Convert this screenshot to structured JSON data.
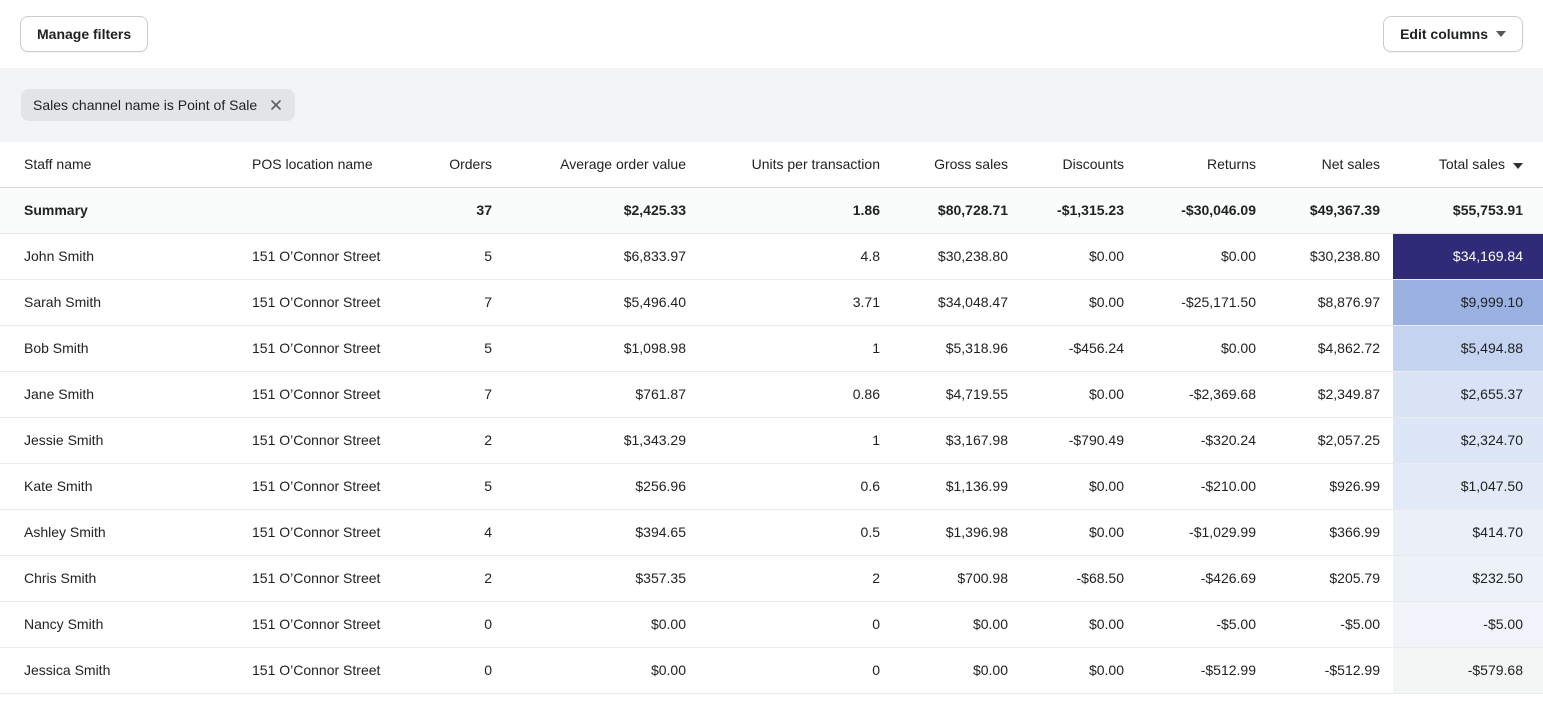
{
  "toolbar": {
    "manage_filters_label": "Manage filters",
    "edit_columns_label": "Edit columns"
  },
  "filter_bar": {
    "chip_label": "Sales channel name is Point of Sale"
  },
  "table": {
    "columns": [
      {
        "label": "Staff name",
        "align": "left"
      },
      {
        "label": "POS location name",
        "align": "left"
      },
      {
        "label": "Orders",
        "align": "right"
      },
      {
        "label": "Average order value",
        "align": "right"
      },
      {
        "label": "Units per transaction",
        "align": "right"
      },
      {
        "label": "Gross sales",
        "align": "right"
      },
      {
        "label": "Discounts",
        "align": "right"
      },
      {
        "label": "Returns",
        "align": "right"
      },
      {
        "label": "Net sales",
        "align": "right"
      },
      {
        "label": "Total sales",
        "align": "right",
        "sort": "desc"
      }
    ],
    "summary": {
      "staff": "Summary",
      "location": "",
      "orders": "37",
      "avg_order_value": "$2,425.33",
      "units_per_transaction": "1.86",
      "gross_sales": "$80,728.71",
      "discounts": "-$1,315.23",
      "returns": "-$30,046.09",
      "net_sales": "$49,367.39",
      "total_sales": "$55,753.91"
    },
    "rows": [
      {
        "staff": "John Smith",
        "location": "151 O’Connor Street",
        "orders": "5",
        "avg_order_value": "$6,833.97",
        "units_per_transaction": "4.8",
        "gross_sales": "$30,238.80",
        "discounts": "$0.00",
        "returns": "$0.00",
        "net_sales": "$30,238.80",
        "total_sales": "$34,169.84",
        "total_bg": "#2f2b77",
        "total_text": "#ffffff"
      },
      {
        "staff": "Sarah Smith",
        "location": "151 O’Connor Street",
        "orders": "7",
        "avg_order_value": "$5,496.40",
        "units_per_transaction": "3.71",
        "gross_sales": "$34,048.47",
        "discounts": "$0.00",
        "returns": "-$25,171.50",
        "net_sales": "$8,876.97",
        "total_sales": "$9,999.10",
        "total_bg": "#9ab1e2",
        "total_text": "#202223"
      },
      {
        "staff": "Bob Smith",
        "location": "151 O’Connor Street",
        "orders": "5",
        "avg_order_value": "$1,098.98",
        "units_per_transaction": "1",
        "gross_sales": "$5,318.96",
        "discounts": "-$456.24",
        "returns": "$0.00",
        "net_sales": "$4,862.72",
        "total_sales": "$5,494.88",
        "total_bg": "#c4d3ef",
        "total_text": "#202223"
      },
      {
        "staff": "Jane Smith",
        "location": "151 O’Connor Street",
        "orders": "7",
        "avg_order_value": "$761.87",
        "units_per_transaction": "0.86",
        "gross_sales": "$4,719.55",
        "discounts": "$0.00",
        "returns": "-$2,369.68",
        "net_sales": "$2,349.87",
        "total_sales": "$2,655.37",
        "total_bg": "#d9e3f5",
        "total_text": "#202223"
      },
      {
        "staff": "Jessie Smith",
        "location": "151 O’Connor Street",
        "orders": "2",
        "avg_order_value": "$1,343.29",
        "units_per_transaction": "1",
        "gross_sales": "$3,167.98",
        "discounts": "-$790.49",
        "returns": "-$320.24",
        "net_sales": "$2,057.25",
        "total_sales": "$2,324.70",
        "total_bg": "#dde6f6",
        "total_text": "#202223"
      },
      {
        "staff": "Kate Smith",
        "location": "151 O’Connor Street",
        "orders": "5",
        "avg_order_value": "$256.96",
        "units_per_transaction": "0.6",
        "gross_sales": "$1,136.99",
        "discounts": "$0.00",
        "returns": "-$210.00",
        "net_sales": "$926.99",
        "total_sales": "$1,047.50",
        "total_bg": "#e3eaf7",
        "total_text": "#202223"
      },
      {
        "staff": "Ashley Smith",
        "location": "151 O’Connor Street",
        "orders": "4",
        "avg_order_value": "$394.65",
        "units_per_transaction": "0.5",
        "gross_sales": "$1,396.98",
        "discounts": "$0.00",
        "returns": "-$1,029.99",
        "net_sales": "$366.99",
        "total_sales": "$414.70",
        "total_bg": "#eaeff8",
        "total_text": "#202223"
      },
      {
        "staff": "Chris Smith",
        "location": "151 O’Connor Street",
        "orders": "2",
        "avg_order_value": "$357.35",
        "units_per_transaction": "2",
        "gross_sales": "$700.98",
        "discounts": "-$68.50",
        "returns": "-$426.69",
        "net_sales": "$205.79",
        "total_sales": "$232.50",
        "total_bg": "#edf2f9",
        "total_text": "#202223"
      },
      {
        "staff": "Nancy Smith",
        "location": "151 O’Connor Street",
        "orders": "0",
        "avg_order_value": "$0.00",
        "units_per_transaction": "0",
        "gross_sales": "$0.00",
        "discounts": "$0.00",
        "returns": "-$5.00",
        "net_sales": "-$5.00",
        "total_sales": "-$5.00",
        "total_bg": "#f0f4fa",
        "total_text": "#202223"
      },
      {
        "staff": "Jessica Smith",
        "location": "151 O’Connor Street",
        "orders": "0",
        "avg_order_value": "$0.00",
        "units_per_transaction": "0",
        "gross_sales": "$0.00",
        "discounts": "$0.00",
        "returns": "-$512.99",
        "net_sales": "-$512.99",
        "total_sales": "-$579.68",
        "total_bg": "#f2f7f5",
        "total_text": "#202223"
      }
    ]
  },
  "colors": {
    "filter_band_bg": "#f3f4f5",
    "chip_bg": "#e3e4e6",
    "button_border": "#c9cccf",
    "header_border": "#d6d8da",
    "row_border": "#eaebec",
    "summary_bg": "#fafbfb",
    "text": "#202223",
    "heatmap_max": "#2f2b77",
    "heatmap_min": "#f2f7f5"
  }
}
